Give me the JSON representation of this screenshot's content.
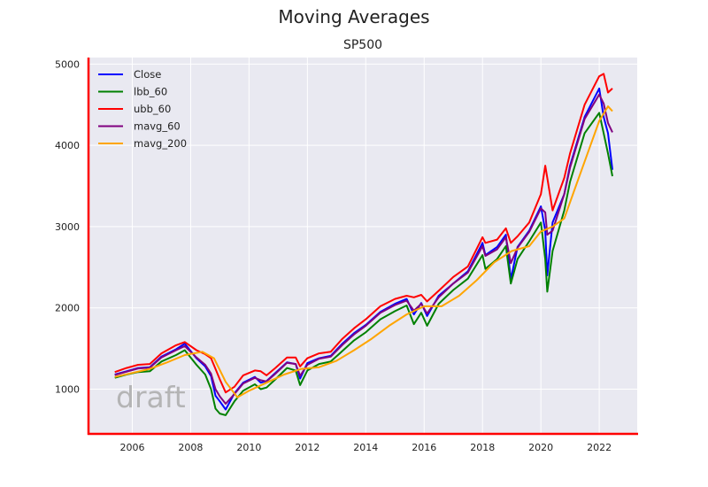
{
  "figure": {
    "suptitle": "Moving Averages",
    "watermark": "draft"
  },
  "chart_data": {
    "type": "line",
    "title": "SP500",
    "xlabel": "",
    "ylabel": "",
    "xlim": [
      2004.5,
      2023.3
    ],
    "ylim": [
      450,
      5080
    ],
    "xticks": [
      2006,
      2008,
      2010,
      2012,
      2014,
      2016,
      2018,
      2020,
      2022
    ],
    "xtick_labels": [
      "2006",
      "2008",
      "2010",
      "2012",
      "2014",
      "2016",
      "2018",
      "2020",
      "2022"
    ],
    "yticks": [
      1000,
      2000,
      3000,
      4000,
      5000
    ],
    "ytick_labels": [
      "1000",
      "2000",
      "3000",
      "4000",
      "5000"
    ],
    "grid": true,
    "legend_position": "top-left",
    "background": "#e9e9f1",
    "spine_color": "#ff0000",
    "series": [
      {
        "name": "Close",
        "color": "#0000ff",
        "x": [
          2005.4,
          2005.8,
          2006.2,
          2006.6,
          2007.0,
          2007.5,
          2007.8,
          2008.2,
          2008.5,
          2008.7,
          2008.85,
          2009.0,
          2009.2,
          2009.5,
          2009.8,
          2010.2,
          2010.4,
          2010.6,
          2010.9,
          2011.3,
          2011.6,
          2011.75,
          2012.0,
          2012.4,
          2012.8,
          2013.2,
          2013.6,
          2014.0,
          2014.5,
          2015.0,
          2015.4,
          2015.65,
          2015.9,
          2016.1,
          2016.5,
          2017.0,
          2017.5,
          2018.0,
          2018.1,
          2018.5,
          2018.8,
          2018.97,
          2019.2,
          2019.6,
          2020.0,
          2020.15,
          2020.22,
          2020.4,
          2020.8,
          2021.0,
          2021.5,
          2022.0,
          2022.15,
          2022.3,
          2022.45
        ],
        "y": [
          1180,
          1220,
          1260,
          1270,
          1400,
          1490,
          1560,
          1380,
          1280,
          1160,
          920,
          850,
          750,
          950,
          1080,
          1150,
          1080,
          1100,
          1200,
          1330,
          1310,
          1130,
          1320,
          1380,
          1410,
          1560,
          1690,
          1790,
          1950,
          2050,
          2110,
          1920,
          2060,
          1900,
          2150,
          2300,
          2450,
          2800,
          2650,
          2750,
          2900,
          2350,
          2750,
          2950,
          3250,
          2950,
          2400,
          3050,
          3400,
          3750,
          4350,
          4700,
          4350,
          4150,
          3700
        ]
      },
      {
        "name": "lbb_60",
        "color": "#008000",
        "x": [
          2005.4,
          2005.8,
          2006.2,
          2006.6,
          2007.0,
          2007.5,
          2007.8,
          2008.2,
          2008.5,
          2008.7,
          2008.85,
          2009.0,
          2009.2,
          2009.5,
          2009.8,
          2010.2,
          2010.4,
          2010.6,
          2010.9,
          2011.3,
          2011.6,
          2011.75,
          2012.0,
          2012.4,
          2012.8,
          2013.2,
          2013.6,
          2014.0,
          2014.5,
          2015.0,
          2015.4,
          2015.65,
          2015.9,
          2016.1,
          2016.5,
          2017.0,
          2017.5,
          2018.0,
          2018.1,
          2018.5,
          2018.8,
          2018.97,
          2019.2,
          2019.6,
          2020.0,
          2020.15,
          2020.22,
          2020.4,
          2020.8,
          2021.0,
          2021.5,
          2022.0,
          2022.15,
          2022.3,
          2022.45
        ],
        "y": [
          1140,
          1180,
          1210,
          1220,
          1340,
          1420,
          1480,
          1300,
          1180,
          1000,
          760,
          700,
          680,
          850,
          980,
          1060,
          1000,
          1020,
          1120,
          1260,
          1230,
          1050,
          1230,
          1310,
          1340,
          1470,
          1600,
          1700,
          1860,
          1960,
          2030,
          1800,
          1940,
          1780,
          2050,
          2220,
          2360,
          2650,
          2480,
          2600,
          2760,
          2300,
          2600,
          2820,
          3050,
          2600,
          2200,
          2700,
          3200,
          3550,
          4150,
          4400,
          4150,
          3900,
          3620
        ]
      },
      {
        "name": "ubb_60",
        "color": "#ff0000",
        "x": [
          2005.4,
          2005.8,
          2006.2,
          2006.6,
          2007.0,
          2007.5,
          2007.8,
          2008.2,
          2008.5,
          2008.7,
          2008.85,
          2009.0,
          2009.2,
          2009.5,
          2009.8,
          2010.2,
          2010.4,
          2010.6,
          2010.9,
          2011.3,
          2011.6,
          2011.75,
          2012.0,
          2012.4,
          2012.8,
          2013.2,
          2013.6,
          2014.0,
          2014.5,
          2015.0,
          2015.4,
          2015.65,
          2015.9,
          2016.1,
          2016.5,
          2017.0,
          2017.5,
          2018.0,
          2018.1,
          2018.5,
          2018.8,
          2018.97,
          2019.2,
          2019.6,
          2020.0,
          2020.15,
          2020.22,
          2020.4,
          2020.8,
          2021.0,
          2021.5,
          2022.0,
          2022.15,
          2022.3,
          2022.45
        ],
        "y": [
          1210,
          1260,
          1300,
          1310,
          1440,
          1540,
          1580,
          1480,
          1430,
          1380,
          1250,
          1120,
          960,
          1030,
          1170,
          1230,
          1220,
          1170,
          1260,
          1390,
          1390,
          1280,
          1380,
          1440,
          1460,
          1620,
          1750,
          1860,
          2020,
          2110,
          2150,
          2130,
          2160,
          2080,
          2210,
          2380,
          2510,
          2870,
          2800,
          2840,
          2980,
          2800,
          2880,
          3050,
          3400,
          3750,
          3600,
          3200,
          3600,
          3900,
          4500,
          4850,
          4880,
          4650,
          4700
        ]
      },
      {
        "name": "mavg_60",
        "color": "#800080",
        "x": [
          2005.4,
          2005.8,
          2006.2,
          2006.6,
          2007.0,
          2007.5,
          2007.8,
          2008.2,
          2008.5,
          2008.7,
          2008.85,
          2009.0,
          2009.2,
          2009.5,
          2009.8,
          2010.2,
          2010.4,
          2010.6,
          2010.9,
          2011.3,
          2011.6,
          2011.75,
          2012.0,
          2012.4,
          2012.8,
          2013.2,
          2013.6,
          2014.0,
          2014.5,
          2015.0,
          2015.4,
          2015.65,
          2015.9,
          2016.1,
          2016.5,
          2017.0,
          2017.5,
          2018.0,
          2018.1,
          2018.5,
          2018.8,
          2018.97,
          2019.2,
          2019.6,
          2020.0,
          2020.15,
          2020.22,
          2020.4,
          2020.8,
          2021.0,
          2021.5,
          2022.0,
          2022.15,
          2022.3,
          2022.45
        ],
        "y": [
          1175,
          1215,
          1255,
          1265,
          1390,
          1480,
          1530,
          1390,
          1300,
          1190,
          1000,
          910,
          820,
          940,
          1070,
          1140,
          1110,
          1095,
          1190,
          1325,
          1310,
          1165,
          1300,
          1375,
          1400,
          1545,
          1675,
          1780,
          1940,
          2035,
          2090,
          1965,
          2050,
          1930,
          2130,
          2300,
          2435,
          2760,
          2640,
          2720,
          2870,
          2550,
          2740,
          2935,
          3225,
          3175,
          2900,
          2950,
          3400,
          3725,
          4325,
          4625,
          4515,
          4275,
          4160
        ]
      },
      {
        "name": "mavg_200",
        "color": "#ffa500",
        "x": [
          2005.4,
          2006.0,
          2006.6,
          2007.2,
          2007.8,
          2008.4,
          2008.8,
          2009.2,
          2009.6,
          2010.0,
          2010.6,
          2011.2,
          2011.8,
          2012.4,
          2013.0,
          2013.6,
          2014.2,
          2014.8,
          2015.4,
          2016.0,
          2016.6,
          2017.2,
          2017.8,
          2018.4,
          2019.0,
          2019.6,
          2020.0,
          2020.4,
          2020.8,
          2021.2,
          2021.6,
          2022.0,
          2022.3,
          2022.45
        ],
        "y": [
          1150,
          1200,
          1250,
          1330,
          1420,
          1460,
          1380,
          1090,
          900,
          980,
          1080,
          1180,
          1250,
          1270,
          1350,
          1480,
          1620,
          1780,
          1920,
          2020,
          2020,
          2150,
          2340,
          2560,
          2700,
          2760,
          2940,
          3000,
          3100,
          3500,
          3900,
          4300,
          4480,
          4420
        ]
      }
    ]
  }
}
